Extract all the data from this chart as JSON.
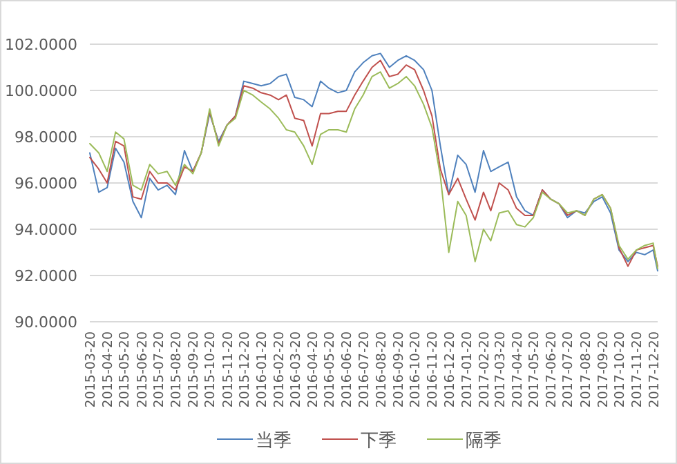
{
  "chart_data": {
    "type": "line",
    "x": [
      "2015-03-20",
      "2015-04-05",
      "2015-04-20",
      "2015-05-05",
      "2015-05-20",
      "2015-06-05",
      "2015-06-20",
      "2015-07-05",
      "2015-07-20",
      "2015-08-05",
      "2015-08-20",
      "2015-09-05",
      "2015-09-20",
      "2015-10-05",
      "2015-10-20",
      "2015-11-05",
      "2015-11-20",
      "2015-12-05",
      "2015-12-20",
      "2016-01-05",
      "2016-01-20",
      "2016-02-05",
      "2016-02-20",
      "2016-03-05",
      "2016-03-20",
      "2016-04-05",
      "2016-04-20",
      "2016-05-05",
      "2016-05-20",
      "2016-06-05",
      "2016-06-20",
      "2016-07-05",
      "2016-07-20",
      "2016-08-05",
      "2016-08-20",
      "2016-09-05",
      "2016-09-20",
      "2016-10-05",
      "2016-10-20",
      "2016-11-05",
      "2016-11-20",
      "2016-12-05",
      "2016-12-20",
      "2017-01-05",
      "2017-01-20",
      "2017-02-05",
      "2017-02-20",
      "2017-03-05",
      "2017-03-20",
      "2017-04-05",
      "2017-04-20",
      "2017-05-05",
      "2017-05-20",
      "2017-06-05",
      "2017-06-20",
      "2017-07-05",
      "2017-07-20",
      "2017-08-05",
      "2017-08-20",
      "2017-09-05",
      "2017-09-20",
      "2017-10-05",
      "2017-10-20",
      "2017-11-05",
      "2017-11-20",
      "2017-12-05",
      "2017-12-20",
      "2017-12-28"
    ],
    "series": [
      {
        "name": "当季",
        "color": "#4f81bd",
        "values": [
          97.3,
          95.6,
          95.8,
          97.5,
          96.9,
          95.2,
          94.5,
          96.2,
          95.7,
          95.9,
          95.5,
          97.4,
          96.5,
          97.3,
          99.0,
          97.8,
          98.5,
          98.9,
          100.4,
          100.3,
          100.2,
          100.3,
          100.6,
          100.7,
          99.7,
          99.6,
          99.3,
          100.4,
          100.1,
          99.9,
          100.0,
          100.8,
          101.2,
          101.5,
          101.6,
          101.0,
          101.3,
          101.5,
          101.3,
          100.9,
          100.0,
          97.6,
          95.5,
          97.2,
          96.8,
          95.6,
          97.4,
          96.5,
          96.7,
          96.9,
          95.4,
          94.8,
          94.6,
          95.7,
          95.3,
          95.1,
          94.5,
          94.8,
          94.7,
          95.2,
          95.4,
          94.7,
          93.1,
          92.6,
          93.0,
          92.9,
          93.1,
          92.2
        ]
      },
      {
        "name": "下季",
        "color": "#c0504d",
        "values": [
          97.1,
          96.6,
          96.0,
          97.8,
          97.6,
          95.4,
          95.3,
          96.5,
          96.0,
          96.0,
          95.7,
          96.7,
          96.5,
          97.3,
          99.1,
          97.7,
          98.5,
          98.9,
          100.2,
          100.1,
          99.9,
          99.8,
          99.6,
          99.8,
          98.8,
          98.7,
          97.6,
          99.0,
          99.0,
          99.1,
          99.1,
          99.8,
          100.4,
          101.0,
          101.3,
          100.6,
          100.7,
          101.1,
          100.9,
          100.0,
          98.9,
          96.6,
          95.5,
          96.2,
          95.3,
          94.4,
          95.6,
          94.8,
          96.0,
          95.7,
          94.9,
          94.6,
          94.6,
          95.7,
          95.3,
          95.1,
          94.6,
          94.8,
          94.6,
          95.3,
          95.5,
          94.9,
          93.2,
          92.4,
          93.1,
          93.2,
          93.3,
          92.4
        ]
      },
      {
        "name": "隔季",
        "color": "#9bbb59",
        "values": [
          97.7,
          97.3,
          96.5,
          98.2,
          97.9,
          95.9,
          95.7,
          96.8,
          96.4,
          96.5,
          95.9,
          96.8,
          96.4,
          97.3,
          99.2,
          97.6,
          98.5,
          98.8,
          100.0,
          99.8,
          99.5,
          99.2,
          98.8,
          98.3,
          98.2,
          97.6,
          96.8,
          98.1,
          98.3,
          98.3,
          98.2,
          99.2,
          99.8,
          100.6,
          100.8,
          100.1,
          100.3,
          100.6,
          100.2,
          99.4,
          98.4,
          96.3,
          93.0,
          95.2,
          94.6,
          92.6,
          94.0,
          93.5,
          94.7,
          94.8,
          94.2,
          94.1,
          94.5,
          95.6,
          95.3,
          95.1,
          94.7,
          94.8,
          94.6,
          95.3,
          95.5,
          94.9,
          93.3,
          92.7,
          93.1,
          93.3,
          93.4,
          92.3
        ]
      }
    ],
    "xlim": [
      "2015-03-20",
      "2017-12-28"
    ],
    "xticks": [
      "2015-03-20",
      "2015-04-20",
      "2015-05-20",
      "2015-06-20",
      "2015-07-20",
      "2015-08-20",
      "2015-09-20",
      "2015-10-20",
      "2015-11-20",
      "2015-12-20",
      "2016-01-20",
      "2016-02-20",
      "2016-03-20",
      "2016-04-20",
      "2016-05-20",
      "2016-06-20",
      "2016-07-20",
      "2016-08-20",
      "2016-09-20",
      "2016-10-20",
      "2016-11-20",
      "2016-12-20",
      "2017-01-20",
      "2017-02-20",
      "2017-03-20",
      "2017-04-20",
      "2017-05-20",
      "2017-06-20",
      "2017-07-20",
      "2017-08-20",
      "2017-09-20",
      "2017-10-20",
      "2017-11-20",
      "2017-12-20"
    ],
    "ylim": [
      90,
      102
    ],
    "yticks": [
      {
        "value": 90,
        "label": "90.0000"
      },
      {
        "value": 92,
        "label": "92.0000"
      },
      {
        "value": 94,
        "label": "94.0000"
      },
      {
        "value": 96,
        "label": "96.0000"
      },
      {
        "value": 98,
        "label": "98.0000"
      },
      {
        "value": 100,
        "label": "100.0000"
      },
      {
        "value": 102,
        "label": "102.0000"
      }
    ],
    "grid": "y",
    "legend": "bottom",
    "marker": "none",
    "line_style": "solid"
  }
}
